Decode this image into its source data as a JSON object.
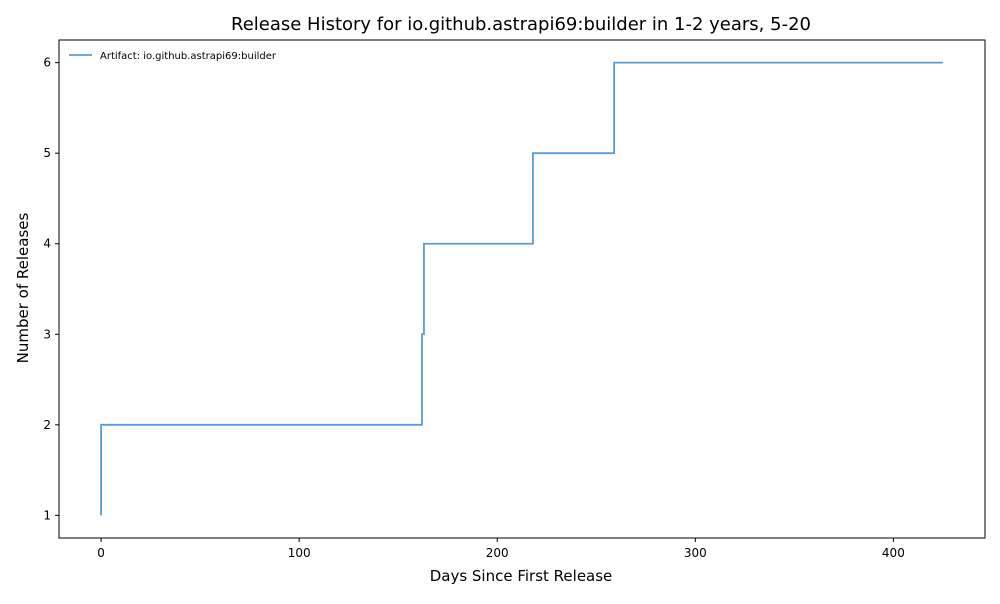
{
  "chart_data": {
    "type": "line",
    "title": "Release History for io.github.astrapi69:builder in 1-2 years, 5-20",
    "xlabel": "Days Since First Release",
    "ylabel": "Number of Releases",
    "xlim": [
      -21.25,
      446.25
    ],
    "ylim": [
      0.75,
      6.25
    ],
    "x_ticks": [
      0,
      100,
      200,
      300,
      400
    ],
    "y_ticks": [
      1,
      2,
      3,
      4,
      5,
      6
    ],
    "grid": false,
    "legend_position": "top-left",
    "series": [
      {
        "name": "Artifact: io.github.astrapi69:builder",
        "color": "#5b9bd5",
        "step": "post",
        "x": [
          0,
          0,
          162,
          163,
          218,
          259,
          425
        ],
        "y": [
          1,
          2,
          3,
          4,
          5,
          6,
          6
        ]
      }
    ]
  }
}
